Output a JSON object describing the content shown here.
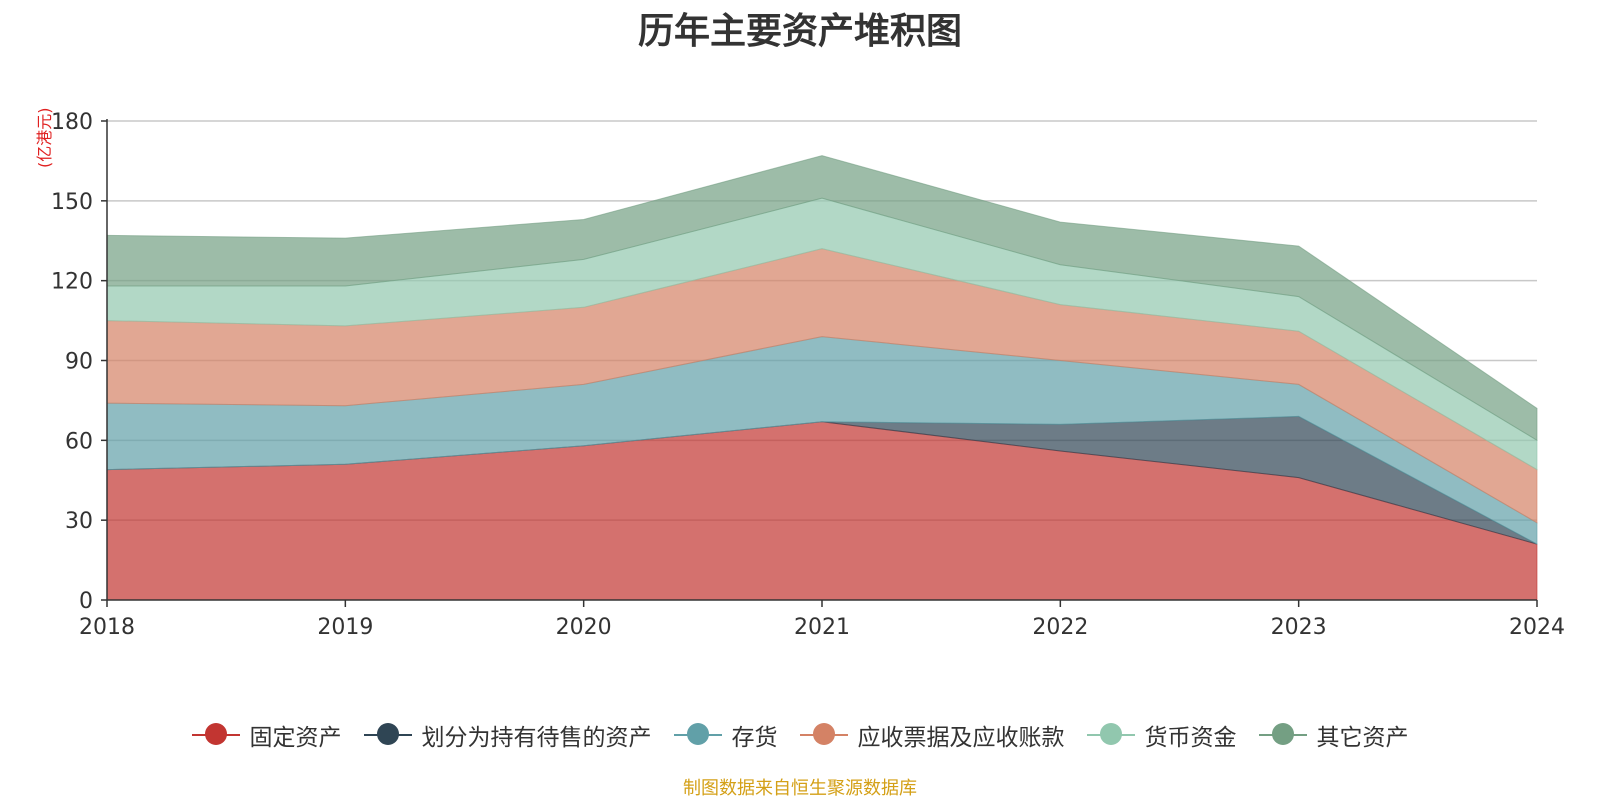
{
  "chart_data": {
    "type": "area",
    "stacked": true,
    "title": "历年主要资产堆积图",
    "ylabel": "(亿港元)",
    "categories": [
      "2018",
      "2019",
      "2020",
      "2021",
      "2022",
      "2023",
      "2024"
    ],
    "ylim": [
      0,
      180
    ],
    "yticks": [
      0,
      30,
      60,
      90,
      120,
      150,
      180
    ],
    "grid": true,
    "legend_position": "bottom",
    "series": [
      {
        "name": "固定资产",
        "color": "#c23531",
        "values": [
          49,
          51,
          58,
          67,
          56,
          46,
          21
        ]
      },
      {
        "name": "划分为持有待售的资产",
        "color": "#2f4554",
        "values": [
          0,
          0,
          0,
          0,
          10,
          23,
          0
        ]
      },
      {
        "name": "存货",
        "color": "#61a0a8",
        "values": [
          25,
          22,
          23,
          32,
          24,
          12,
          8
        ]
      },
      {
        "name": "应收票据及应收账款",
        "color": "#d48265",
        "values": [
          31,
          30,
          29,
          33,
          21,
          20,
          20
        ]
      },
      {
        "name": "货币资金",
        "color": "#91c7ae",
        "values": [
          13,
          15,
          18,
          19,
          15,
          13,
          11
        ]
      },
      {
        "name": "其它资产",
        "color": "#749f83",
        "values": [
          19,
          18,
          15,
          16,
          16,
          19,
          12
        ]
      }
    ]
  },
  "footer": {
    "source": "制图数据来自恒生聚源数据库"
  }
}
